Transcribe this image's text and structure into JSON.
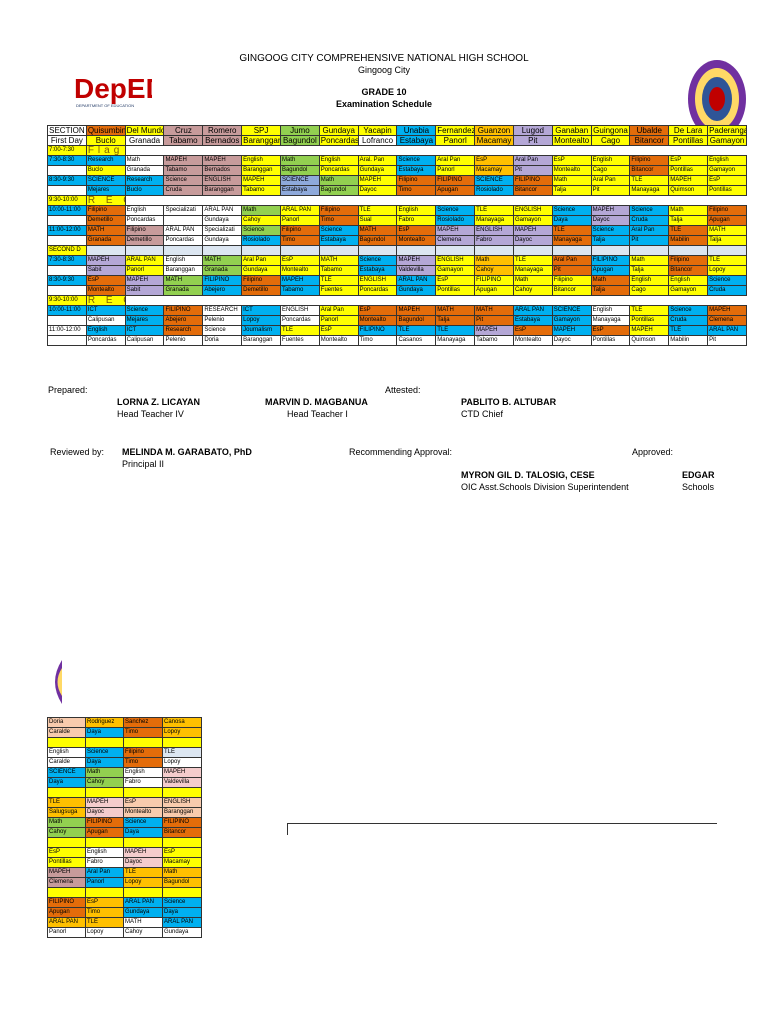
{
  "header": {
    "school": "GINGOOG CITY COMPREHENSIVE NATIONAL HIGH SCHOOL",
    "city": "Gingoog City",
    "grade": "GRADE 10",
    "title": "Examination Schedule"
  },
  "logos": {
    "left_text": "DepED",
    "left_sub": "DEPARTMENT OF EDUCATION"
  },
  "palette": {
    "w": "#ffffff",
    "o": "#e36c0a",
    "y": "#ffff00",
    "r": "#c79b9b",
    "g": "#92d050",
    "gl": "#ffe699",
    "k": "#ffc000",
    "b": "#00b0f0",
    "p": "#b4a7d6",
    "pk": "#f4cccc",
    "bl": "#8ea9db",
    "t": "#f8cbad",
    "s": "#dce6f1"
  },
  "main_table": {
    "rows": [
      [
        "SECTION|w",
        "Quisumbing|o",
        "Del Mundo|y",
        "Cruz|r",
        "Romero|r",
        "SPJ|y",
        "Jumo|g",
        "Gundaya|y",
        "Yacapin|y",
        "Unabia|b",
        "Fernandez|y",
        "Guanzon|k",
        "Lugod|p",
        "Ganaban|y",
        "Guingona|y",
        "Ubalde|o",
        "De Lara|y",
        "Paderanga|y"
      ],
      [
        "First Day|w",
        "Buclo|y",
        "Granada|w",
        "Tabamo|r",
        "Bernados|r",
        "Baranggan|y",
        "Bagundol|g",
        "Poncardas|y",
        "Lofranco|w",
        "Estabaya|b",
        "Panorl|y",
        "Macamay|k",
        "Pit|p",
        "Montealto|y",
        "Cago|y",
        "Bitancor|o",
        "Pontillas|y",
        "Gamayon|y"
      ],
      [
        "7:00-7:30|y",
        "|y",
        "|y",
        "|y",
        "|y",
        "|y",
        "|y",
        "|y",
        "|y",
        "Flag Ceremony/HGP|y",
        "|y",
        "|y",
        "|y",
        "|y",
        "|y",
        "|y",
        "|y",
        "|y"
      ],
      [
        "7:30-8:30|b",
        "Research|b",
        "Math|w",
        "MAPEH|r",
        "MAPEH|r",
        "English|y",
        "Math|g",
        "English|y",
        "Aral. Pan|y",
        "Science|b",
        "Aral Pan|y",
        "EsP|k",
        "Aral Pan|p",
        "EsP|y",
        "English|y",
        "Filipino|o",
        "EsP|y",
        "English|y"
      ],
      [
        "|w",
        "Buclo|y",
        "Granada|w",
        "Tabamo|r",
        "Bernados|r",
        "Baranggan|y",
        "Bagundol|g",
        "Poncardas|y",
        "Gundaya|y",
        "Estabaya|b",
        "Panorl|y",
        "Macamay|k",
        "Pit|p",
        "Montealto|y",
        "Cago|y",
        "Bitancor|o",
        "Pontillas|y",
        "Gamayon|y"
      ],
      [
        "8:30-9:30|b",
        "SCIENCE|b",
        "Research|b",
        "Science|r",
        "ENGLISH|r",
        "MAPEH|y",
        "SCIENCE|bl",
        "Math|g",
        "MAPEH|y",
        "Filipino|o",
        "FILIPINO|o",
        "SCIENCE|b",
        "FILIPINO|o",
        "Math|y",
        "Aral Pan|y",
        "TLE|y",
        "MAPEH|y",
        "EsP|y"
      ],
      [
        "|w",
        "Mejares|b",
        "Buclo|b",
        "Cruda|r",
        "Baranggan|r",
        "Tabamo|y",
        "Estabaya|bl",
        "Bagundol|g",
        "Dayoc|y",
        "Timo|o",
        "Apugan|o",
        "Rosiolado|b",
        "Bitancor|o",
        "Talja|y",
        "Pit|y",
        "Manayaga|y",
        "Quimson|y",
        "Pontillas|y"
      ],
      [
        "9:30-10:00|y",
        "|y",
        "|y",
        "|y",
        "|y",
        "|y",
        "|y",
        "|y",
        "|y",
        "R  E  C  E  S  S|y",
        "|y",
        "|y",
        "|y",
        "|y",
        "|y",
        "|y",
        "|y",
        "|y"
      ],
      [
        "10:00-11:00|b",
        "Filipino|o",
        "English|w",
        "Specializati|w",
        "ARAL PAN|w",
        "Math|g",
        "ARAL PAN|y",
        "Filipino|o",
        "TLE|y",
        "English|y",
        "Science|b",
        "TLE|y",
        "ENGLISH|y",
        "Science|b",
        "MAPEH|p",
        "Science|b",
        "Math|y",
        "Filipino|o"
      ],
      [
        "|w",
        "Demetillo|o",
        "Poncardas|w",
        "|w",
        "Gundaya|w",
        "Cahoy|y",
        "Panorl|y",
        "Timo|o",
        "Sual|y",
        "Fabro|y",
        "Rosiolado|b",
        "Manayaga|y",
        "Gamayon|y",
        "Daya|b",
        "Dayoc|p",
        "Cruda|b",
        "Talja|y",
        "Apugan|o"
      ],
      [
        "11:00-12:00|b",
        "MATH|o",
        "Filipino|r",
        "ARAL PAN|w",
        "Specializati|w",
        "Science|g",
        "Filipino|o",
        "Science|b",
        "MATH|o",
        "EsP|o",
        "MAPEH|p",
        "ENGLISH|p",
        "MAPEH|p",
        "TLE|o",
        "Science|b",
        "Aral Pan|b",
        "TLE|o",
        "MATH|y"
      ],
      [
        "|w",
        "Granada|o",
        "Demetillo|r",
        "Poncardas|w",
        "Gundaya|w",
        "Rosiolado|b",
        "Timo|o",
        "Estabaya|b",
        "Bagundol|o",
        "Montealto|o",
        "Clemena|p",
        "Fabro|p",
        "Dayoc|p",
        "Manayaga|o",
        "Talja|b",
        "Pit|b",
        "Mabilin|o",
        "Talja|y"
      ],
      [
        "SECOND D|y",
        "|s",
        "|s",
        "|s",
        "|s",
        "|s",
        "|s",
        "|s",
        "|s",
        "|s",
        "|s",
        "|s",
        "|s",
        "|s",
        "|s",
        "|s",
        "|s",
        "|s"
      ],
      [
        "7:30-8:30|b",
        "MAPEH|p",
        "ARAL PAN|y",
        "English|w",
        "MATH|g",
        "Aral Pan|y",
        "EsP|y",
        "MATH|y",
        "Science|b",
        "MAPEH|p",
        "ENGLISH|y",
        "Math|k",
        "TLE|y",
        "Aral Pan|o",
        "FILIPINO|b",
        "Math|y",
        "Filipino|o",
        "TLE|y"
      ],
      [
        "|w",
        "Sabit|p",
        "Panorl|y",
        "Baranggan|w",
        "Granada|g",
        "Gundaya|y",
        "Montealto|y",
        "Tabamo|y",
        "Estabaya|b",
        "Valdevilla|p",
        "Gamayon|y",
        "Cahoy|k",
        "Manayaga|y",
        "Pit|o",
        "Apugan|b",
        "Talja|y",
        "Bitancor|o",
        "Lopoy|y"
      ],
      [
        "8:30-9:30|b",
        "EsP|o",
        "MAPEH|p",
        "MATH|g",
        "FILIPINO|b",
        "Filipino|o",
        "MAPEH|b",
        "TLE|y",
        "ENGLISH|y",
        "ARAL PAN|b",
        "EsP|y",
        "FILIPINO|y",
        "Math|y",
        "Filipino|y",
        "Math|o",
        "English|y",
        "English|y",
        "Science|b"
      ],
      [
        "|w",
        "Montealto|o",
        "Sabit|p",
        "Granada|g",
        "Abejero|b",
        "Demetillo|o",
        "Tabamo|b",
        "Fuentes|y",
        "Poncardas|y",
        "Gundaya|b",
        "Pontillas|y",
        "Apugan|y",
        "Cahoy|y",
        "Bitancor|y",
        "Talja|o",
        "Cago|y",
        "Gamayon|y",
        "Cruda|b"
      ],
      [
        "9:30-10:00|y",
        "|y",
        "|y",
        "|y",
        "|y",
        "|y",
        "|y",
        "|y",
        "|y",
        "R  E  C  E  S  S|y",
        "|y",
        "|y",
        "|y",
        "|y",
        "|y",
        "|y",
        "|y",
        "|y"
      ],
      [
        "10:00-11:00|b",
        "ICT|b",
        "Science|b",
        "FILIPINO|o",
        "RESEARCH|w",
        "ICT|b",
        "ENGLISH|w",
        "Aral Pan|y",
        "EsP|o",
        "MAPEH|o",
        "MATH|o",
        "MATH|o",
        "ARAL PAN|b",
        "SCIENCE|b",
        "English|w",
        "TLE|y",
        "Science|b",
        "MAPEH|o"
      ],
      [
        "|w",
        "Calipusan|w",
        "Mejares|b",
        "Abejero|o",
        "Pelenio|w",
        "Lopoy|b",
        "Poncardas|w",
        "Panorl|y",
        "Montealto|o",
        "Bagundol|o",
        "Talja|o",
        "Pit|o",
        "Estabaya|b",
        "Gamayon|b",
        "Manayaga|w",
        "Pontillas|y",
        "Cruda|b",
        "Clemena|o"
      ],
      [
        "11:00-12:00|w",
        "English|b",
        "ICT|b",
        "Research|o",
        "Science|w",
        "Journalism|b",
        "TLE|y",
        "EsP|y",
        "FILIPINO|b",
        "TLE|b",
        "TLE|b",
        "MAPEH|p",
        "EsP|o",
        "MAPEH|b",
        "EsP|o",
        "MAPEH|y",
        "TLE|b",
        "ARAL PAN|b"
      ],
      [
        "|w",
        "Poncardas|w",
        "Calipusan|w",
        "Pelenio|w",
        "Doria|w",
        "Baranggan|w",
        "Fuentes|w",
        "Montealto|w",
        "Timo|w",
        "Casanos|w",
        "Manayaga|w",
        "Tabamo|w",
        "Montealto|w",
        "Dayoc|w",
        "Pontillas|w",
        "Quimson|w",
        "Mabilin|w",
        "Pit|w"
      ]
    ]
  },
  "small_table": {
    "rows": [
      [
        "Doria|t",
        "Rodriguez|k",
        "Sanchez|o",
        "Canosa|k"
      ],
      [
        "Caralde|t",
        "Daya|b",
        "Timo|o",
        "Lopoy|k"
      ],
      [
        "|y",
        "|y",
        "|y",
        "|y"
      ],
      [
        "English|w",
        "Science|b",
        "Filipino|o",
        "TLE|s"
      ],
      [
        "Caralde|w",
        "Daya|b",
        "Timo|o",
        "Lopoy|w"
      ],
      [
        "SCIENCE|b",
        "Math|g",
        "English|w",
        "MAPEH|pk"
      ],
      [
        "Daya|b",
        "Cahoy|g",
        "Fabro|w",
        "Valdevilla|pk"
      ],
      [
        "|y",
        "|y",
        "|y",
        "|y"
      ],
      [
        "TLE|k",
        "MAPEH|pk",
        "EsP|t",
        "ENGLISH|t"
      ],
      [
        "Salugsuga|k",
        "Dayoc|pk",
        "Montealto|t",
        "Baranggan|t"
      ],
      [
        "Math|g",
        "FILIPINO|o",
        "Science|b",
        "FILIPINO|o"
      ],
      [
        "Cahoy|g",
        "Apugan|o",
        "Daya|b",
        "Bitancor|o"
      ],
      [
        "|y",
        "|y",
        "|y",
        "|y"
      ],
      [
        "EsP|y",
        "English|w",
        "MAPEH|pk",
        "EsP|y"
      ],
      [
        "Pontillas|y",
        "Fabro|w",
        "Dayoc|pk",
        "Macamay|y"
      ],
      [
        "MAPEH|r",
        "Aral Pan|b",
        "TLE|k",
        "Math|k"
      ],
      [
        "Clemena|r",
        "Panorl|b",
        "Lopoy|k",
        "Bagundol|k"
      ],
      [
        "|y",
        "|y",
        "|y",
        "|y"
      ],
      [
        "FILIPINO|o",
        "EsP|k",
        "ARAL PAN|b",
        "Science|b"
      ],
      [
        "Apugan|o",
        "Timo|k",
        "Gundaya|b",
        "Daya|b"
      ],
      [
        "ARAL PAN|k",
        "TLE|k",
        "MATH|w",
        "ARAL PAN|b"
      ],
      [
        "Panorl|w",
        "Lopoy|w",
        "Cahoy|w",
        "Gundaya|w"
      ]
    ]
  },
  "signatures": {
    "prepared_label": "Prepared:",
    "attested_label": "Attested:",
    "p1_name": "LORNA Z. LICAYAN",
    "p1_title": "Head Teacher IV",
    "p2_name": "MARVIN D. MAGBANUA",
    "p2_title": "Head Teacher I",
    "a1_name": "PABLITO B. ALTUBAR",
    "a1_title": "CTD Chief",
    "reviewed_label": "Reviewed by:",
    "r1_name": "MELINDA M. GARABATO, PhD",
    "r1_title": "Principal II",
    "recommending_label": "Recommending Approval:",
    "approved_label": "Approved:",
    "rec_name": "MYRON GIL D. TALOSIG, CESE",
    "rec_title": "OIC Asst.Schools Division Superintendent",
    "app_name": "EDGAR",
    "app_title": "Schools"
  }
}
